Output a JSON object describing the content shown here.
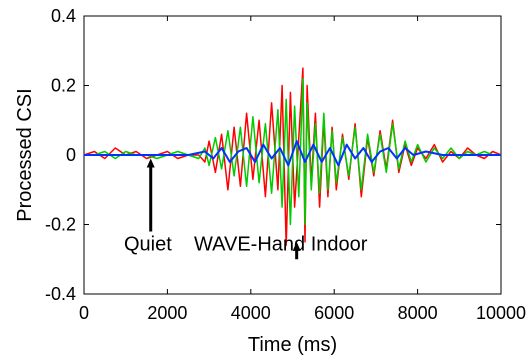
{
  "chart_data": {
    "type": "line",
    "xlabel": "Time (ms)",
    "ylabel": "Processed CSI",
    "xlim": [
      0,
      10000
    ],
    "ylim": [
      -0.4,
      0.4
    ],
    "xticks": [
      0,
      2000,
      4000,
      6000,
      8000,
      10000
    ],
    "xtick_labels": [
      "0",
      "2000",
      "4000",
      "6000",
      "8000",
      "10000"
    ],
    "yticks": [
      -0.4,
      -0.2,
      0,
      0.2,
      0.4
    ],
    "ytick_labels": [
      "-0.4",
      "-0.2",
      "0",
      "0.2",
      "0.4"
    ],
    "grid": false,
    "legend": "none",
    "series": [
      {
        "color": "#ff0000",
        "x": [
          0,
          250,
          500,
          750,
          1000,
          1250,
          1500,
          1750,
          2000,
          2250,
          2500,
          2750,
          2900,
          3000,
          3150,
          3300,
          3450,
          3600,
          3750,
          3900,
          4050,
          4200,
          4350,
          4500,
          4650,
          4750,
          4850,
          4950,
          5050,
          5150,
          5250,
          5300,
          5350,
          5450,
          5550,
          5650,
          5750,
          5850,
          5950,
          6050,
          6200,
          6350,
          6500,
          6650,
          6800,
          6950,
          7100,
          7250,
          7400,
          7550,
          7700,
          7850,
          8000,
          8200,
          8400,
          8600,
          8800,
          9000,
          9200,
          9400,
          9600,
          9800,
          10000
        ],
        "y": [
          0.0,
          0.01,
          -0.01,
          0.02,
          0.0,
          0.01,
          -0.01,
          0.0,
          0.01,
          -0.01,
          0.0,
          0.0,
          -0.02,
          0.04,
          -0.05,
          0.06,
          -0.1,
          0.08,
          -0.09,
          0.12,
          -0.07,
          0.1,
          -0.12,
          0.15,
          -0.1,
          0.2,
          -0.26,
          0.18,
          -0.15,
          0.05,
          0.25,
          -0.25,
          0.2,
          -0.08,
          0.12,
          -0.15,
          0.1,
          -0.12,
          0.08,
          -0.1,
          0.06,
          -0.07,
          0.09,
          -0.12,
          0.05,
          -0.06,
          0.07,
          -0.04,
          0.1,
          -0.05,
          0.03,
          -0.03,
          0.02,
          -0.01,
          0.03,
          -0.02,
          0.01,
          -0.01,
          0.02,
          0.0,
          -0.01,
          0.01,
          0.0
        ]
      },
      {
        "color": "#00cc00",
        "x": [
          0,
          250,
          500,
          750,
          1000,
          1250,
          1500,
          1750,
          2000,
          2250,
          2500,
          2750,
          2900,
          3000,
          3150,
          3300,
          3450,
          3600,
          3750,
          3900,
          4050,
          4200,
          4350,
          4500,
          4650,
          4750,
          4850,
          4950,
          5050,
          5150,
          5250,
          5300,
          5350,
          5450,
          5550,
          5650,
          5750,
          5850,
          5950,
          6050,
          6200,
          6350,
          6500,
          6650,
          6800,
          6950,
          7100,
          7250,
          7400,
          7550,
          7700,
          7850,
          8000,
          8200,
          8400,
          8600,
          8800,
          9000,
          9200,
          9400,
          9600,
          9800,
          10000
        ],
        "y": [
          0.0,
          0.0,
          0.01,
          -0.01,
          0.01,
          0.0,
          0.0,
          -0.01,
          0.0,
          0.01,
          0.0,
          -0.01,
          0.02,
          -0.03,
          0.05,
          -0.04,
          0.07,
          -0.06,
          0.08,
          -0.09,
          0.11,
          -0.08,
          0.09,
          -0.11,
          0.13,
          -0.15,
          0.16,
          -0.2,
          0.14,
          -0.12,
          0.22,
          -0.2,
          0.15,
          -0.1,
          0.09,
          -0.11,
          0.12,
          -0.1,
          0.07,
          -0.08,
          0.05,
          -0.06,
          0.08,
          -0.1,
          0.06,
          -0.05,
          0.06,
          -0.05,
          0.09,
          -0.04,
          0.04,
          -0.02,
          0.03,
          -0.02,
          0.02,
          -0.01,
          0.02,
          -0.01,
          0.01,
          0.0,
          0.01,
          0.0,
          0.0
        ]
      },
      {
        "color": "#0033ff",
        "x": [
          0,
          500,
          1000,
          1500,
          2000,
          2500,
          2900,
          3100,
          3300,
          3500,
          3700,
          3900,
          4100,
          4300,
          4500,
          4700,
          4900,
          5100,
          5300,
          5500,
          5700,
          5900,
          6100,
          6300,
          6500,
          6700,
          6900,
          7100,
          7300,
          7500,
          7700,
          7900,
          8200,
          8600,
          9000,
          9400,
          9800,
          10000
        ],
        "y": [
          0.0,
          0.0,
          0.0,
          0.0,
          0.0,
          0.0,
          0.01,
          -0.01,
          0.02,
          -0.02,
          0.01,
          0.02,
          -0.02,
          0.03,
          -0.01,
          0.02,
          -0.03,
          0.04,
          -0.02,
          0.03,
          -0.02,
          0.02,
          -0.03,
          0.03,
          -0.01,
          0.02,
          -0.02,
          0.01,
          0.02,
          -0.01,
          0.02,
          0.0,
          0.01,
          0.0,
          0.0,
          0.0,
          0.0,
          0.0
        ]
      }
    ],
    "annotations": [
      {
        "text": "Quiet",
        "x": 1600,
        "arrow_from": -0.22,
        "arrow_to": -0.01
      },
      {
        "text": "WAVE-Hand Indoor",
        "x": 5100,
        "arrow_from": -0.3,
        "arrow_to": -0.25
      }
    ]
  }
}
